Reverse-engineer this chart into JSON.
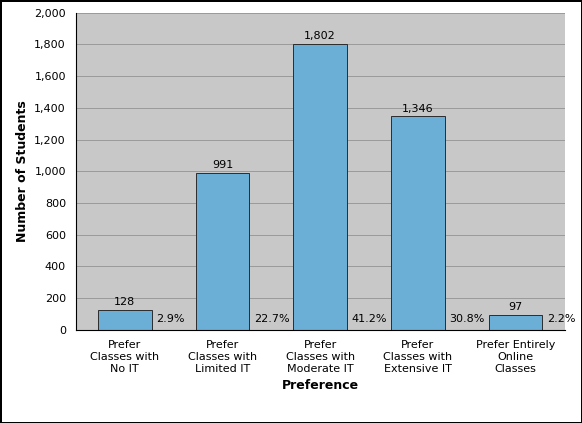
{
  "categories": [
    "Prefer\nClasses with\nNo IT",
    "Prefer\nClasses with\nLimited IT",
    "Prefer\nClasses with\nModerate IT",
    "Prefer\nClasses with\nExtensive IT",
    "Prefer Entirely\nOnline\nClasses"
  ],
  "values": [
    128,
    991,
    1802,
    1346,
    97
  ],
  "percentages": [
    "2.9%",
    "22.7%",
    "41.2%",
    "30.8%",
    "2.2%"
  ],
  "bar_color": "#6BAED6",
  "bar_edgecolor": "#2C2C2C",
  "plot_bg_color": "#C8C8C8",
  "fig_bg_color": "#FFFFFF",
  "xlabel": "Preference",
  "ylabel": "Number of Students",
  "ylim": [
    0,
    2000
  ],
  "yticks": [
    0,
    200,
    400,
    600,
    800,
    1000,
    1200,
    1400,
    1600,
    1800,
    2000
  ],
  "ytick_labels": [
    "0",
    "200",
    "400",
    "600",
    "800",
    "1,000",
    "1,200",
    "1,400",
    "1,600",
    "1,800",
    "2,000"
  ],
  "xlabel_fontsize": 9,
  "ylabel_fontsize": 9,
  "tick_fontsize": 8,
  "annotation_fontsize": 8,
  "bar_width": 0.55
}
